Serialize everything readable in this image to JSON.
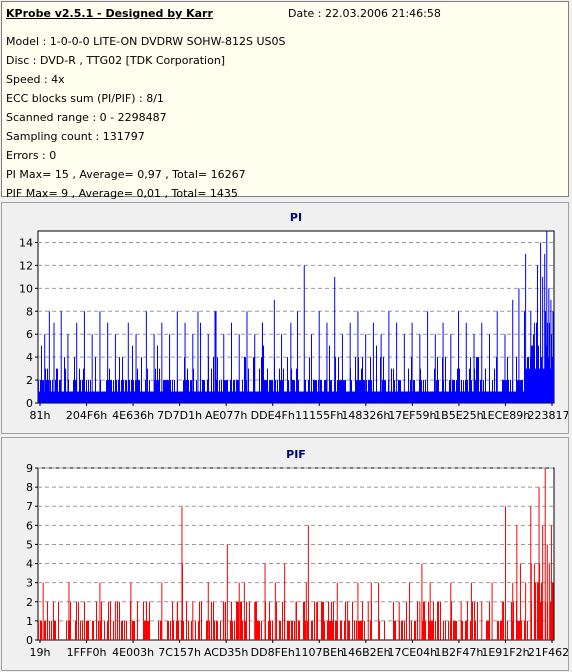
{
  "header": {
    "title": "KProbe v2.5.1 - Designed by Karr",
    "date": "Date : 22.03.2006 21:46:58",
    "lines": [
      "Model : 1-0-0-0 LITE-ON DVDRW SOHW-812S  US0S",
      "Disc : DVD-R , TTG02 [TDK Corporation]",
      "Speed : 4x",
      "ECC blocks sum (PI/PIF) : 8/1",
      "Scanned range : 0 - 2298487",
      "Sampling count : 131797",
      "Errors : 0",
      "PI Max= 15 , Average= 0,97 , Total= 16267",
      "PIF Max= 9 , Average= 0,01 , Total= 1435"
    ]
  },
  "chart_data": [
    {
      "type": "bar",
      "title": "PI",
      "ylim": [
        0,
        15
      ],
      "yticks": [
        0,
        2,
        4,
        6,
        8,
        10,
        12,
        14
      ],
      "xticks": [
        "81h",
        "204F6h",
        "4E636h",
        "7D7D1h",
        "AE077h",
        "DDE4Fh",
        "11155Fh",
        "148326h",
        "17EF59h",
        "1B5E25h",
        "1ECE89h",
        "223817h"
      ],
      "grid": true,
      "color": "#0000ff",
      "spikes": [
        [
          0.013,
          6
        ],
        [
          0.022,
          8
        ],
        [
          0.031,
          7
        ],
        [
          0.045,
          8
        ],
        [
          0.058,
          6
        ],
        [
          0.075,
          7
        ],
        [
          0.09,
          8
        ],
        [
          0.105,
          6
        ],
        [
          0.12,
          8
        ],
        [
          0.135,
          7
        ],
        [
          0.15,
          6
        ],
        [
          0.175,
          7
        ],
        [
          0.19,
          6
        ],
        [
          0.21,
          8
        ],
        [
          0.225,
          6
        ],
        [
          0.24,
          7
        ],
        [
          0.255,
          6
        ],
        [
          0.27,
          8
        ],
        [
          0.285,
          7
        ],
        [
          0.3,
          6
        ],
        [
          0.315,
          7
        ],
        [
          0.33,
          6
        ],
        [
          0.345,
          8
        ],
        [
          0.36,
          6
        ],
        [
          0.375,
          7
        ],
        [
          0.39,
          6
        ],
        [
          0.405,
          8
        ],
        [
          0.42,
          6
        ],
        [
          0.435,
          7
        ],
        [
          0.458,
          9
        ],
        [
          0.472,
          6
        ],
        [
          0.49,
          7
        ],
        [
          0.503,
          8
        ],
        [
          0.516,
          12
        ],
        [
          0.53,
          6
        ],
        [
          0.545,
          8
        ],
        [
          0.56,
          7
        ],
        [
          0.575,
          11
        ],
        [
          0.59,
          6
        ],
        [
          0.605,
          7
        ],
        [
          0.62,
          8
        ],
        [
          0.635,
          6
        ],
        [
          0.65,
          7
        ],
        [
          0.665,
          6
        ],
        [
          0.68,
          8
        ],
        [
          0.695,
          7
        ],
        [
          0.71,
          6
        ],
        [
          0.725,
          7
        ],
        [
          0.74,
          6
        ],
        [
          0.755,
          8
        ],
        [
          0.77,
          6
        ],
        [
          0.785,
          7
        ],
        [
          0.8,
          6
        ],
        [
          0.815,
          8
        ],
        [
          0.83,
          7
        ],
        [
          0.845,
          6
        ],
        [
          0.86,
          7
        ],
        [
          0.875,
          6
        ],
        [
          0.89,
          8
        ],
        [
          0.905,
          6
        ],
        [
          0.92,
          9
        ],
        [
          0.932,
          10
        ],
        [
          0.945,
          13
        ],
        [
          0.955,
          8
        ],
        [
          0.962,
          7
        ],
        [
          0.968,
          12
        ],
        [
          0.974,
          14
        ],
        [
          0.978,
          11
        ],
        [
          0.982,
          13
        ],
        [
          0.986,
          15
        ],
        [
          0.99,
          10
        ],
        [
          0.994,
          9
        ],
        [
          0.998,
          8
        ]
      ]
    },
    {
      "type": "bar",
      "title": "PIF",
      "ylim": [
        0,
        9
      ],
      "yticks": [
        0,
        1,
        2,
        3,
        4,
        5,
        6,
        7,
        8,
        9
      ],
      "xticks": [
        "19h",
        "1FFF0h",
        "4E003h",
        "7C157h",
        "ACD35h",
        "DD8FEh",
        "1107BEh",
        "146B2Eh",
        "17CE04h",
        "1B2F47h",
        "1E91F2h",
        "21F462h"
      ],
      "grid": true,
      "color": "#ff0000",
      "spikes": [
        [
          0.01,
          3
        ],
        [
          0.03,
          2
        ],
        [
          0.06,
          3
        ],
        [
          0.09,
          2
        ],
        [
          0.12,
          3
        ],
        [
          0.15,
          2
        ],
        [
          0.18,
          3
        ],
        [
          0.21,
          2
        ],
        [
          0.24,
          3
        ],
        [
          0.27,
          2
        ],
        [
          0.28,
          4
        ],
        [
          0.3,
          2
        ],
        [
          0.33,
          3
        ],
        [
          0.36,
          2
        ],
        [
          0.39,
          3
        ],
        [
          0.4,
          3
        ],
        [
          0.42,
          2
        ],
        [
          0.46,
          3
        ],
        [
          0.478,
          4
        ],
        [
          0.5,
          2
        ],
        [
          0.52,
          3
        ],
        [
          0.54,
          2
        ],
        [
          0.58,
          3
        ],
        [
          0.6,
          2
        ],
        [
          0.62,
          3
        ],
        [
          0.64,
          2
        ],
        [
          0.66,
          3
        ],
        [
          0.7,
          2
        ],
        [
          0.72,
          3
        ],
        [
          0.74,
          2
        ],
        [
          0.76,
          3
        ],
        [
          0.78,
          2
        ],
        [
          0.8,
          3
        ],
        [
          0.82,
          2
        ],
        [
          0.84,
          3
        ],
        [
          0.86,
          2
        ],
        [
          0.88,
          3
        ],
        [
          0.9,
          2
        ],
        [
          0.92,
          3
        ],
        [
          0.935,
          4
        ],
        [
          0.945,
          3
        ],
        [
          0.956,
          4
        ],
        [
          0.962,
          4
        ],
        [
          0.968,
          3
        ],
        [
          0.972,
          4
        ],
        [
          0.978,
          6
        ],
        [
          0.983,
          9
        ],
        [
          0.987,
          5
        ],
        [
          0.991,
          4
        ],
        [
          0.995,
          6
        ],
        [
          0.998,
          3
        ]
      ]
    }
  ],
  "pi_manual": [
    [
      0.343,
      8
    ],
    [
      0.435,
      7
    ],
    [
      0.31,
      8
    ]
  ],
  "pif_manual": [
    [
      0.279,
      7
    ],
    [
      0.367,
      5
    ],
    [
      0.44,
      4
    ],
    [
      0.524,
      6
    ],
    [
      0.646,
      3
    ],
    [
      0.744,
      4
    ],
    [
      0.906,
      7
    ],
    [
      0.928,
      6
    ],
    [
      0.955,
      7
    ],
    [
      0.971,
      8
    ]
  ]
}
